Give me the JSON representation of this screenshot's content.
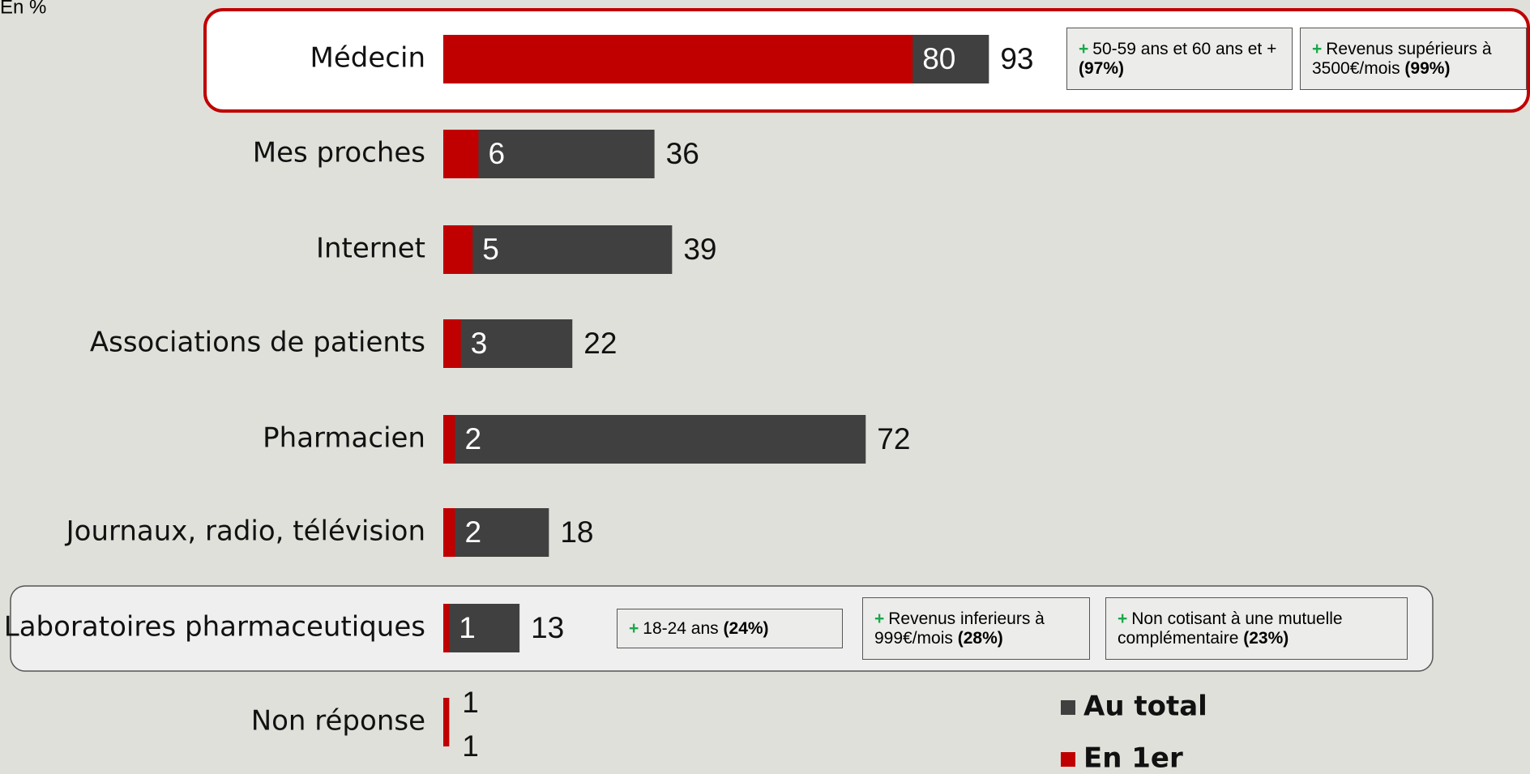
{
  "chart_data": {
    "type": "bar",
    "orientation": "horizontal",
    "unit_label": "En %",
    "categories": [
      "Médecin",
      "Mes proches",
      "Internet",
      "Associations de patients",
      "Pharmacien",
      "Journaux, radio, télévision",
      "Laboratoires pharmaceutiques",
      "Non réponse"
    ],
    "series": [
      {
        "name": "Au total",
        "color": "#404040",
        "values": [
          93,
          36,
          39,
          22,
          72,
          18,
          13,
          1
        ]
      },
      {
        "name": "En 1er",
        "color": "#c00000",
        "values": [
          80,
          6,
          5,
          3,
          2,
          2,
          1,
          1
        ]
      }
    ],
    "annotations": [
      {
        "prefix": "+",
        "text": "50-59 ans et 60 ans et +",
        "emphasis": "(97%)"
      },
      {
        "prefix": "+",
        "text": "Revenus supérieurs à 3500€/mois",
        "emphasis": "(99%)"
      },
      {
        "prefix": "+",
        "text": "18-24 ans",
        "emphasis": "(24%)"
      },
      {
        "prefix": "+",
        "text": "Revenus inferieurs à 999€/mois",
        "emphasis": "(28%)"
      },
      {
        "prefix": "+",
        "text": "Non cotisant à une mutuelle complémentaire",
        "emphasis": "(23%)"
      }
    ]
  }
}
